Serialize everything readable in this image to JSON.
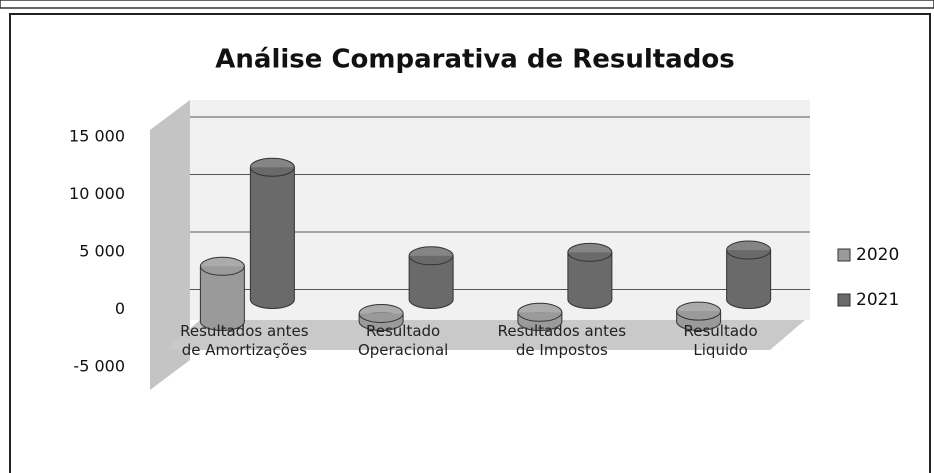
{
  "chart_data": {
    "type": "bar",
    "title": "Análise Comparativa de Resultados",
    "categories": [
      "Resultados antes de Amortizações",
      "Resultado Operacional",
      "Resultados antes de Impostos",
      "Resultado Liquido"
    ],
    "series": [
      {
        "name": "2020",
        "color": "#9a9a9a",
        "values": [
          4800,
          700,
          800,
          900
        ]
      },
      {
        "name": "2021",
        "color": "#6a6a6a",
        "values": [
          11500,
          3800,
          4100,
          4300
        ]
      }
    ],
    "ylim": [
      -5000,
      15000
    ],
    "yticks": [
      {
        "value": -5000,
        "label": "-5 000"
      },
      0,
      {
        "value": 5000,
        "label": "5 000"
      },
      {
        "value": 10000,
        "label": "10 000"
      },
      {
        "value": 15000,
        "label": "15 000"
      }
    ],
    "grid": true,
    "legend": "right"
  }
}
